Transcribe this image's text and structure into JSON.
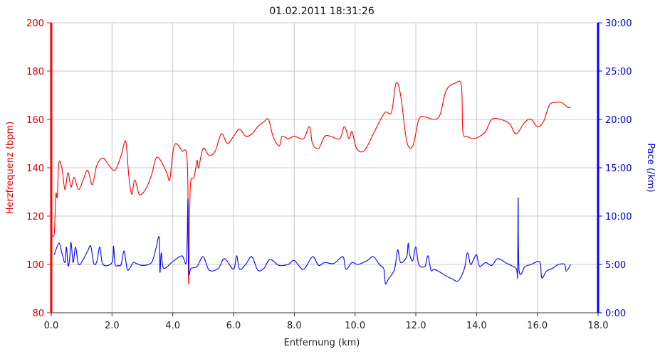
{
  "colors": {
    "hr": "#ff0000",
    "pace": "#0000ff",
    "grid": "#c8c8c8"
  },
  "chart_data": {
    "type": "line",
    "title": "01.02.2011 18:31:26",
    "xlabel": "Entfernung (km)",
    "ylabel_left": "Herzfrequenz (bpm)",
    "ylabel_right": "Pace (/km)",
    "xlim": [
      0,
      18
    ],
    "ylim_left": [
      80,
      200
    ],
    "ylim_right_min": [
      0,
      30
    ],
    "x_ticks": [
      "0.0",
      "2.0",
      "4.0",
      "6.0",
      "8.0",
      "10.0",
      "12.0",
      "14.0",
      "16.0",
      "18.0"
    ],
    "y_left_ticks": [
      "80",
      "100",
      "120",
      "140",
      "160",
      "180",
      "200"
    ],
    "y_right_ticks": [
      "0:00",
      "5:00",
      "10:00",
      "15:00",
      "20:00",
      "25:00",
      "30:00"
    ],
    "grid": true,
    "series": [
      {
        "name": "Herzfrequenz (bpm)",
        "axis": "left",
        "points": [
          [
            0.02,
            112
          ],
          [
            0.1,
            113
          ],
          [
            0.15,
            129
          ],
          [
            0.2,
            128
          ],
          [
            0.25,
            142
          ],
          [
            0.35,
            140
          ],
          [
            0.45,
            131
          ],
          [
            0.55,
            138
          ],
          [
            0.65,
            132
          ],
          [
            0.75,
            136
          ],
          [
            0.9,
            131
          ],
          [
            1.05,
            135
          ],
          [
            1.2,
            139
          ],
          [
            1.35,
            133
          ],
          [
            1.5,
            141
          ],
          [
            1.7,
            144
          ],
          [
            1.9,
            141
          ],
          [
            2.1,
            139
          ],
          [
            2.3,
            145
          ],
          [
            2.45,
            151
          ],
          [
            2.55,
            137
          ],
          [
            2.65,
            129
          ],
          [
            2.75,
            135
          ],
          [
            2.9,
            129
          ],
          [
            3.1,
            131
          ],
          [
            3.3,
            137
          ],
          [
            3.45,
            144
          ],
          [
            3.6,
            143
          ],
          [
            3.8,
            138
          ],
          [
            3.9,
            135
          ],
          [
            4.0,
            146
          ],
          [
            4.1,
            150
          ],
          [
            4.3,
            147
          ],
          [
            4.48,
            142
          ],
          [
            4.52,
            92
          ],
          [
            4.56,
            125
          ],
          [
            4.6,
            135
          ],
          [
            4.7,
            136
          ],
          [
            4.8,
            143
          ],
          [
            4.85,
            140
          ],
          [
            5.0,
            148
          ],
          [
            5.2,
            145
          ],
          [
            5.4,
            147
          ],
          [
            5.6,
            154
          ],
          [
            5.8,
            150
          ],
          [
            6.0,
            153
          ],
          [
            6.2,
            156
          ],
          [
            6.4,
            153
          ],
          [
            6.6,
            154
          ],
          [
            6.8,
            157
          ],
          [
            7.0,
            159
          ],
          [
            7.15,
            160
          ],
          [
            7.3,
            153
          ],
          [
            7.5,
            149
          ],
          [
            7.6,
            153
          ],
          [
            7.8,
            152
          ],
          [
            8.0,
            153
          ],
          [
            8.3,
            152
          ],
          [
            8.5,
            157
          ],
          [
            8.6,
            150
          ],
          [
            8.8,
            148
          ],
          [
            9.0,
            153
          ],
          [
            9.2,
            153
          ],
          [
            9.5,
            152
          ],
          [
            9.65,
            157
          ],
          [
            9.8,
            152
          ],
          [
            9.9,
            155
          ],
          [
            10.05,
            148
          ],
          [
            10.3,
            147
          ],
          [
            10.6,
            154
          ],
          [
            10.8,
            159
          ],
          [
            11.0,
            163
          ],
          [
            11.2,
            163
          ],
          [
            11.35,
            175
          ],
          [
            11.5,
            170
          ],
          [
            11.7,
            151
          ],
          [
            11.9,
            149
          ],
          [
            12.1,
            160
          ],
          [
            12.3,
            161
          ],
          [
            12.6,
            160
          ],
          [
            12.8,
            162
          ],
          [
            13.0,
            172
          ],
          [
            13.3,
            175
          ],
          [
            13.5,
            174
          ],
          [
            13.55,
            155
          ],
          [
            13.7,
            153
          ],
          [
            13.9,
            152
          ],
          [
            14.1,
            153
          ],
          [
            14.3,
            155
          ],
          [
            14.5,
            160
          ],
          [
            14.8,
            160
          ],
          [
            15.1,
            158
          ],
          [
            15.3,
            154
          ],
          [
            15.6,
            159
          ],
          [
            15.8,
            160
          ],
          [
            16.0,
            157
          ],
          [
            16.2,
            159
          ],
          [
            16.4,
            166
          ],
          [
            16.6,
            167
          ],
          [
            16.8,
            167
          ],
          [
            17.0,
            165
          ],
          [
            17.1,
            165
          ]
        ]
      },
      {
        "name": "Pace (/km)",
        "axis": "right",
        "points": [
          [
            0.1,
            6.0
          ],
          [
            0.25,
            7.2
          ],
          [
            0.35,
            6.2
          ],
          [
            0.45,
            5.2
          ],
          [
            0.5,
            6.8
          ],
          [
            0.55,
            4.9
          ],
          [
            0.6,
            5.4
          ],
          [
            0.65,
            7.3
          ],
          [
            0.72,
            5.2
          ],
          [
            0.8,
            6.8
          ],
          [
            0.9,
            5.0
          ],
          [
            1.05,
            5.5
          ],
          [
            1.2,
            6.4
          ],
          [
            1.3,
            6.9
          ],
          [
            1.4,
            5.1
          ],
          [
            1.5,
            5.3
          ],
          [
            1.6,
            6.8
          ],
          [
            1.7,
            5.0
          ],
          [
            2.0,
            5.2
          ],
          [
            2.05,
            6.9
          ],
          [
            2.1,
            5.0
          ],
          [
            2.2,
            4.9
          ],
          [
            2.3,
            5.0
          ],
          [
            2.4,
            6.4
          ],
          [
            2.5,
            4.5
          ],
          [
            2.6,
            4.7
          ],
          [
            2.7,
            5.2
          ],
          [
            2.8,
            5.1
          ],
          [
            3.0,
            4.9
          ],
          [
            3.3,
            5.2
          ],
          [
            3.45,
            6.7
          ],
          [
            3.55,
            7.8
          ],
          [
            3.58,
            4.2
          ],
          [
            3.62,
            6.2
          ],
          [
            3.7,
            4.6
          ],
          [
            4.0,
            5.3
          ],
          [
            4.3,
            5.9
          ],
          [
            4.45,
            5.4
          ],
          [
            4.5,
            11.8
          ],
          [
            4.52,
            4.4
          ],
          [
            4.6,
            4.6
          ],
          [
            4.8,
            4.8
          ],
          [
            5.0,
            5.8
          ],
          [
            5.2,
            4.4
          ],
          [
            5.5,
            4.6
          ],
          [
            5.7,
            5.6
          ],
          [
            6.0,
            4.5
          ],
          [
            6.1,
            5.9
          ],
          [
            6.2,
            4.5
          ],
          [
            6.4,
            5.0
          ],
          [
            6.6,
            5.8
          ],
          [
            6.8,
            4.4
          ],
          [
            7.0,
            4.6
          ],
          [
            7.2,
            5.5
          ],
          [
            7.5,
            4.9
          ],
          [
            7.8,
            5.0
          ],
          [
            8.0,
            5.4
          ],
          [
            8.3,
            4.5
          ],
          [
            8.6,
            5.8
          ],
          [
            8.8,
            4.9
          ],
          [
            9.0,
            5.2
          ],
          [
            9.3,
            5.1
          ],
          [
            9.6,
            5.8
          ],
          [
            9.7,
            4.5
          ],
          [
            9.9,
            5.2
          ],
          [
            10.1,
            5.0
          ],
          [
            10.4,
            5.4
          ],
          [
            10.6,
            5.8
          ],
          [
            10.8,
            5.0
          ],
          [
            10.95,
            4.5
          ],
          [
            11.0,
            3.0
          ],
          [
            11.1,
            3.5
          ],
          [
            11.3,
            4.5
          ],
          [
            11.4,
            6.5
          ],
          [
            11.5,
            5.2
          ],
          [
            11.7,
            5.8
          ],
          [
            11.75,
            7.2
          ],
          [
            11.8,
            6.0
          ],
          [
            11.9,
            5.4
          ],
          [
            12.0,
            6.8
          ],
          [
            12.1,
            5.0
          ],
          [
            12.3,
            4.8
          ],
          [
            12.4,
            5.9
          ],
          [
            12.5,
            4.4
          ],
          [
            12.6,
            4.5
          ],
          [
            12.8,
            4.2
          ],
          [
            13.0,
            3.8
          ],
          [
            13.2,
            3.5
          ],
          [
            13.4,
            3.3
          ],
          [
            13.6,
            4.6
          ],
          [
            13.7,
            6.2
          ],
          [
            13.8,
            5.0
          ],
          [
            13.9,
            5.5
          ],
          [
            14.0,
            6.0
          ],
          [
            14.1,
            4.8
          ],
          [
            14.3,
            5.2
          ],
          [
            14.5,
            4.9
          ],
          [
            14.7,
            5.6
          ],
          [
            15.0,
            5.1
          ],
          [
            15.3,
            4.6
          ],
          [
            15.35,
            4.0
          ],
          [
            15.37,
            11.9
          ],
          [
            15.4,
            4.4
          ],
          [
            15.6,
            4.8
          ],
          [
            15.8,
            5.0
          ],
          [
            16.0,
            5.3
          ],
          [
            16.1,
            5.1
          ],
          [
            16.15,
            3.6
          ],
          [
            16.3,
            4.3
          ],
          [
            16.5,
            4.6
          ],
          [
            16.7,
            5.0
          ],
          [
            16.9,
            5.0
          ],
          [
            16.95,
            4.3
          ],
          [
            17.1,
            5.0
          ]
        ]
      }
    ]
  }
}
